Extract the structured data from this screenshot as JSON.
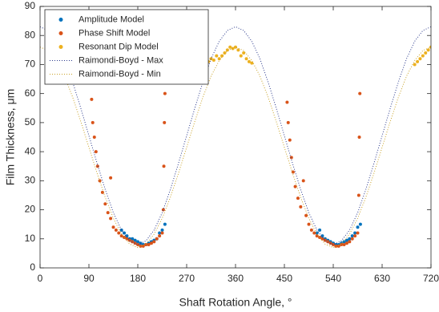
{
  "chart_data": {
    "type": "scatter",
    "xlabel": "Shaft Rotation Angle, °",
    "ylabel": "Film Thickness, μm",
    "xlim": [
      0,
      720
    ],
    "xticks": [
      0,
      90,
      180,
      270,
      360,
      450,
      540,
      630,
      720
    ],
    "ylim": [
      0,
      90
    ],
    "yticks": [
      0,
      10,
      20,
      30,
      40,
      50,
      60,
      70,
      80,
      90
    ],
    "grid": false,
    "legend": "upper-left",
    "series": [
      {
        "name": "Amplitude Model",
        "color": "#0072BD",
        "mode": "markers",
        "x": [
          150,
          155,
          160,
          165,
          170,
          175,
          180,
          185,
          190,
          195,
          200,
          205,
          210,
          215,
          220,
          225,
          230,
          510,
          515,
          520,
          525,
          530,
          535,
          540,
          545,
          550,
          555,
          560,
          565,
          570,
          575,
          580,
          585,
          590
        ],
        "values": [
          13,
          12,
          11,
          10,
          10,
          9.5,
          9,
          8.5,
          8,
          8,
          8.5,
          9,
          9.5,
          10,
          12,
          13,
          15,
          12,
          13,
          11,
          10,
          9.5,
          9,
          8.5,
          8,
          8,
          8.5,
          9,
          9.5,
          10,
          11,
          12,
          14,
          15
        ]
      },
      {
        "name": "Phase Shift Model",
        "color": "#D95319",
        "mode": "markers",
        "x": [
          95,
          97,
          100,
          103,
          106,
          110,
          115,
          120,
          125,
          130,
          130,
          135,
          140,
          145,
          150,
          155,
          160,
          165,
          170,
          175,
          180,
          185,
          190,
          195,
          200,
          205,
          210,
          215,
          220,
          225,
          227,
          228,
          229,
          230,
          455,
          457,
          460,
          463,
          466,
          470,
          475,
          480,
          485,
          490,
          495,
          500,
          505,
          510,
          515,
          520,
          525,
          530,
          535,
          540,
          545,
          550,
          555,
          560,
          565,
          570,
          575,
          580,
          585,
          587,
          588,
          589
        ],
        "values": [
          58,
          50,
          45,
          40,
          35,
          30,
          26,
          22,
          19,
          17,
          31,
          14,
          13,
          12,
          11,
          10.5,
          10,
          9.5,
          9,
          8.5,
          8,
          7.5,
          7.5,
          8,
          8,
          8.5,
          9,
          10,
          11,
          12,
          20,
          35,
          50,
          60,
          57,
          50,
          44,
          38,
          33,
          28,
          24,
          21,
          30,
          18,
          15,
          13,
          12,
          11,
          10.5,
          10,
          9.5,
          9,
          8.5,
          8,
          7.5,
          7.5,
          8,
          8,
          8.5,
          9,
          10,
          11,
          12,
          25,
          45,
          60
        ]
      },
      {
        "name": "Resonant Dip Model",
        "color": "#EDB120",
        "mode": "markers",
        "x": [
          310,
          315,
          320,
          325,
          330,
          335,
          340,
          345,
          350,
          355,
          360,
          365,
          370,
          375,
          380,
          385,
          390,
          690,
          695,
          700,
          705,
          710,
          715,
          720
        ],
        "values": [
          71,
          72,
          71.5,
          73,
          72,
          73,
          74,
          75,
          76,
          75.5,
          76,
          75,
          73,
          74,
          72,
          71,
          70.5,
          70,
          71,
          72,
          73,
          74,
          75,
          76
        ]
      },
      {
        "name": "Raimondi-Boyd - Max",
        "color": "#2b3a8c",
        "mode": "dotted-line",
        "x": [
          0,
          15,
          30,
          45,
          60,
          75,
          90,
          105,
          120,
          135,
          150,
          165,
          180,
          195,
          210,
          225,
          240,
          255,
          270,
          285,
          300,
          315,
          330,
          345,
          360,
          375,
          390,
          405,
          420,
          435,
          450,
          465,
          480,
          495,
          510,
          525,
          540,
          555,
          570,
          585,
          600,
          615,
          630,
          645,
          660,
          675,
          690,
          705,
          720
        ],
        "values": [
          83,
          81.7,
          78,
          72,
          64,
          55,
          45.5,
          36,
          27,
          19,
          13,
          9.3,
          8,
          9.3,
          13,
          19,
          27,
          36,
          45.5,
          55,
          64,
          72,
          78,
          81.7,
          83,
          81.7,
          78,
          72,
          64,
          55,
          45.5,
          36,
          27,
          19,
          13,
          9.3,
          8,
          9.3,
          13,
          19,
          27,
          36,
          45.5,
          55,
          64,
          72,
          78,
          81.7,
          83
        ]
      },
      {
        "name": "Raimondi-Boyd - Min",
        "color": "#c9a227",
        "mode": "dotted-line",
        "x": [
          0,
          15,
          30,
          45,
          60,
          75,
          90,
          105,
          120,
          135,
          150,
          165,
          180,
          195,
          210,
          225,
          240,
          255,
          270,
          285,
          300,
          315,
          330,
          345,
          360,
          375,
          390,
          405,
          420,
          435,
          450,
          465,
          480,
          495,
          510,
          525,
          540,
          555,
          570,
          585,
          600,
          615,
          630,
          645,
          660,
          675,
          690,
          705,
          720
        ],
        "values": [
          76,
          74.8,
          71.4,
          66,
          58.8,
          50.4,
          41.5,
          32.6,
          24.3,
          17.1,
          11.6,
          8.2,
          7,
          8.2,
          11.6,
          17.1,
          24.3,
          32.6,
          41.5,
          50.4,
          58.8,
          66,
          71.4,
          74.8,
          76,
          74.8,
          71.4,
          66,
          58.8,
          50.4,
          41.5,
          32.6,
          24.3,
          17.1,
          11.6,
          8.2,
          7,
          8.2,
          11.6,
          17.1,
          24.3,
          32.6,
          41.5,
          50.4,
          58.8,
          66,
          71.4,
          74.8,
          76
        ]
      }
    ]
  }
}
